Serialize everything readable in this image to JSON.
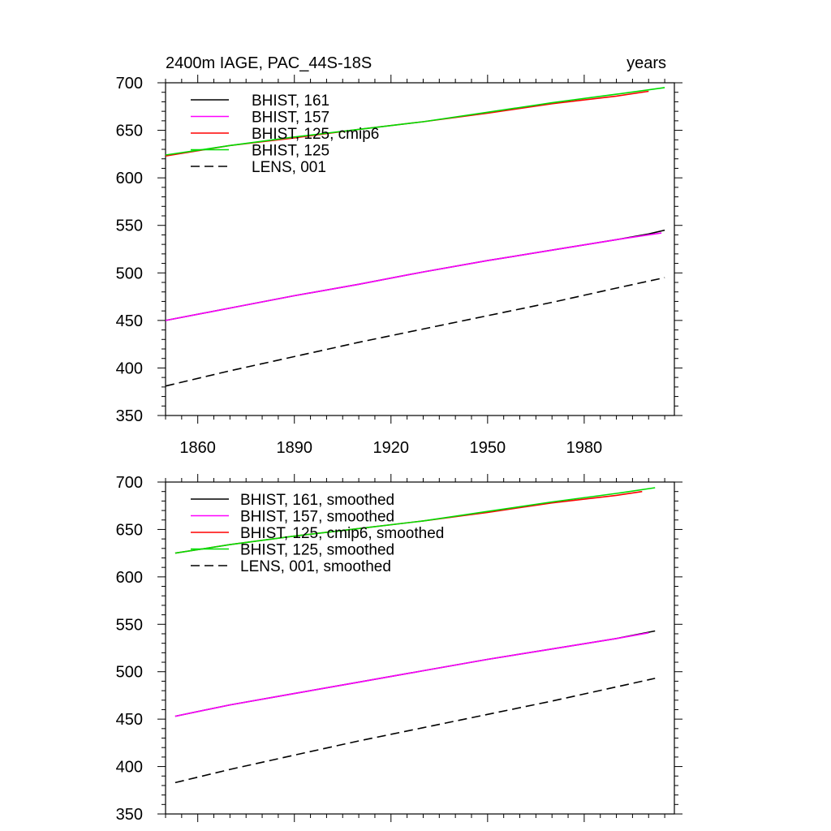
{
  "chart_data": [
    {
      "type": "line",
      "title_left": "2400m IAGE, PAC_44S-18S",
      "title_right": "years",
      "xlim": [
        1850,
        2008
      ],
      "ylim": [
        350,
        700
      ],
      "x_ticks": [
        1860,
        1890,
        1920,
        1950,
        1980
      ],
      "y_ticks": [
        350,
        400,
        450,
        500,
        550,
        600,
        650,
        700
      ],
      "show_x_labels": true,
      "legend_position": "top-left",
      "series": [
        {
          "name": "BHIST, 161",
          "color": "#000000",
          "dash": "solid",
          "x": [
            1850,
            1870,
            1890,
            1910,
            1930,
            1950,
            1970,
            1990,
            2000,
            2005
          ],
          "y": [
            450,
            463,
            476,
            488,
            501,
            513,
            524,
            535,
            541,
            545
          ]
        },
        {
          "name": "BHIST, 157",
          "color": "#ff00ff",
          "dash": "solid",
          "x": [
            1850,
            1870,
            1890,
            1910,
            1930,
            1950,
            1970,
            1990,
            2004
          ],
          "y": [
            450,
            463,
            476,
            488,
            501,
            513,
            524,
            535,
            542
          ]
        },
        {
          "name": "BHIST, 125, cmip6",
          "color": "#ff0000",
          "dash": "solid",
          "x": [
            1850,
            1870,
            1890,
            1910,
            1930,
            1950,
            1970,
            1990,
            2000
          ],
          "y": [
            623,
            634,
            642,
            651,
            659,
            668,
            678,
            686,
            691
          ]
        },
        {
          "name": "BHIST, 125",
          "color": "#00dd00",
          "dash": "solid",
          "x": [
            1850,
            1860,
            1870,
            1890,
            1910,
            1930,
            1950,
            1970,
            1990,
            2005
          ],
          "y": [
            624,
            629,
            634,
            643,
            651,
            659,
            669,
            679,
            688,
            695
          ]
        },
        {
          "name": "LENS, 001",
          "color": "#000000",
          "dash": "dashed",
          "x": [
            1850,
            1870,
            1890,
            1910,
            1930,
            1950,
            1970,
            1990,
            2005
          ],
          "y": [
            381,
            397,
            412,
            427,
            441,
            455,
            469,
            484,
            495
          ]
        }
      ]
    },
    {
      "type": "line",
      "title_left": "",
      "title_right": "",
      "xlim": [
        1850,
        2008
      ],
      "ylim": [
        350,
        700
      ],
      "x_ticks": [
        1860,
        1890,
        1920,
        1950,
        1980
      ],
      "y_ticks": [
        350,
        400,
        450,
        500,
        550,
        600,
        650,
        700
      ],
      "show_x_labels": false,
      "legend_position": "top-left",
      "series": [
        {
          "name": "BHIST, 161, smoothed",
          "color": "#000000",
          "dash": "solid",
          "x": [
            1853,
            1870,
            1890,
            1910,
            1930,
            1950,
            1970,
            1990,
            2002
          ],
          "y": [
            453,
            465,
            477,
            489,
            501,
            513,
            524,
            535,
            543
          ]
        },
        {
          "name": "BHIST, 157, smoothed",
          "color": "#ff00ff",
          "dash": "solid",
          "x": [
            1853,
            1870,
            1890,
            1910,
            1930,
            1950,
            1970,
            1990,
            2000
          ],
          "y": [
            453,
            465,
            477,
            489,
            501,
            513,
            524,
            535,
            541
          ]
        },
        {
          "name": "BHIST, 125, cmip6, smoothed",
          "color": "#ff0000",
          "dash": "solid",
          "x": [
            1853,
            1870,
            1890,
            1910,
            1930,
            1950,
            1970,
            1990,
            1998
          ],
          "y": [
            625,
            634,
            643,
            651,
            659,
            668,
            678,
            686,
            690
          ]
        },
        {
          "name": "BHIST, 125, smoothed",
          "color": "#00dd00",
          "dash": "solid",
          "x": [
            1853,
            1870,
            1890,
            1910,
            1930,
            1950,
            1970,
            1990,
            2002
          ],
          "y": [
            625,
            634,
            643,
            651,
            659,
            669,
            679,
            688,
            694
          ]
        },
        {
          "name": "LENS, 001, smoothed",
          "color": "#000000",
          "dash": "dashed",
          "x": [
            1853,
            1870,
            1890,
            1910,
            1930,
            1950,
            1970,
            1990,
            2002
          ],
          "y": [
            383,
            397,
            412,
            427,
            441,
            455,
            469,
            484,
            493
          ]
        }
      ]
    }
  ]
}
